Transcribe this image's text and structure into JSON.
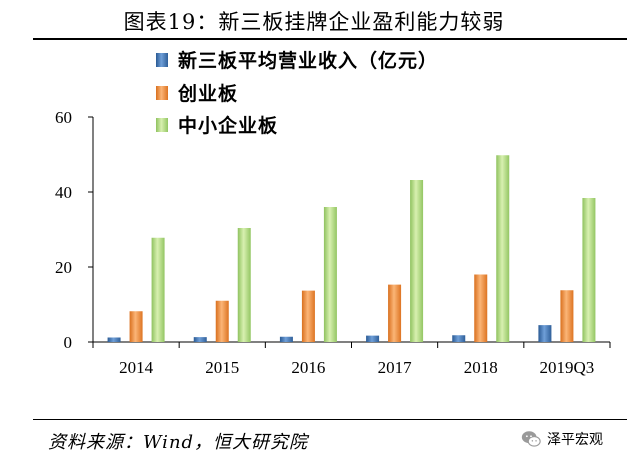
{
  "figure_title": "图表19：新三板挂牌企业盈利能力较弱",
  "source_text": "资料来源：Wind，恒大研究院",
  "brand_name": "泽平宏观",
  "chart_data": {
    "type": "bar",
    "title": "",
    "xlabel": "",
    "ylabel": "",
    "categories": [
      "2014",
      "2015",
      "2016",
      "2017",
      "2018",
      "2019Q3"
    ],
    "ylim": [
      0,
      60
    ],
    "yticks": [
      "0",
      "20",
      "40",
      "60"
    ],
    "grid": false,
    "legend_position": "top-left",
    "series": [
      {
        "name": "新三板平均营业收入（亿元）",
        "color": "#4f81bd",
        "values": [
          1.2,
          1.3,
          1.4,
          1.7,
          1.8,
          4.5
        ]
      },
      {
        "name": "创业板",
        "color": "#f79646",
        "values": [
          8.2,
          11.0,
          13.7,
          15.3,
          18.0,
          13.8
        ]
      },
      {
        "name": "中小企业板",
        "color": "#9bbb59",
        "values": [
          27.8,
          30.4,
          36.0,
          43.2,
          49.8,
          38.4
        ]
      }
    ]
  }
}
